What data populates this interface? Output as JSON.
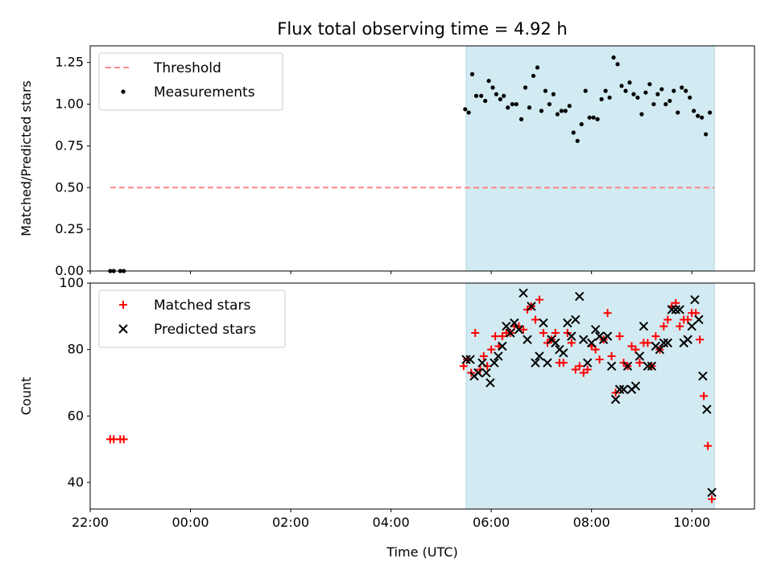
{
  "chart_data": [
    {
      "type": "scatter",
      "title": "Flux total observing time = 4.92 h",
      "xlabel": "",
      "ylabel": "Matched/Predicted stars",
      "xlim_hours": [
        -2.0,
        11.25
      ],
      "ylim": [
        0,
        1.35
      ],
      "yticks": [
        0.0,
        0.25,
        0.5,
        0.75,
        1.0,
        1.25
      ],
      "ytick_labels": [
        "0.00",
        "0.25",
        "0.50",
        "0.75",
        "1.00",
        "1.25"
      ],
      "legend_position": "upper-left",
      "shaded_interval_hours": [
        5.5,
        10.45
      ],
      "shade_color": "#add8e6",
      "series": [
        {
          "name": "Threshold",
          "kind": "dashed-line",
          "color": "#ff7f7f",
          "x": [
            -1.6,
            10.45
          ],
          "y": [
            0.5,
            0.5
          ]
        },
        {
          "name": "Measurements",
          "kind": "points",
          "color": "#000000",
          "points": [
            [
              -1.6,
              0.0
            ],
            [
              -1.53,
              0.0
            ],
            [
              -1.4,
              0.0
            ],
            [
              -1.33,
              0.0
            ],
            [
              5.48,
              0.97
            ],
            [
              5.55,
              0.95
            ],
            [
              5.62,
              1.18
            ],
            [
              5.7,
              1.05
            ],
            [
              5.8,
              1.05
            ],
            [
              5.88,
              1.02
            ],
            [
              5.95,
              1.14
            ],
            [
              6.03,
              1.1
            ],
            [
              6.1,
              1.06
            ],
            [
              6.18,
              1.03
            ],
            [
              6.25,
              1.05
            ],
            [
              6.33,
              0.98
            ],
            [
              6.42,
              1.0
            ],
            [
              6.5,
              1.0
            ],
            [
              6.6,
              0.91
            ],
            [
              6.68,
              1.1
            ],
            [
              6.76,
              0.98
            ],
            [
              6.84,
              1.17
            ],
            [
              6.92,
              1.22
            ],
            [
              7.0,
              0.96
            ],
            [
              7.08,
              1.08
            ],
            [
              7.16,
              1.0
            ],
            [
              7.24,
              1.06
            ],
            [
              7.32,
              0.94
            ],
            [
              7.4,
              0.96
            ],
            [
              7.48,
              0.96
            ],
            [
              7.56,
              0.99
            ],
            [
              7.64,
              0.83
            ],
            [
              7.72,
              0.78
            ],
            [
              7.8,
              0.88
            ],
            [
              7.88,
              1.08
            ],
            [
              7.96,
              0.92
            ],
            [
              8.04,
              0.92
            ],
            [
              8.12,
              0.91
            ],
            [
              8.2,
              1.03
            ],
            [
              8.28,
              1.08
            ],
            [
              8.36,
              1.04
            ],
            [
              8.44,
              1.28
            ],
            [
              8.52,
              1.24
            ],
            [
              8.6,
              1.11
            ],
            [
              8.68,
              1.08
            ],
            [
              8.76,
              1.13
            ],
            [
              8.84,
              1.06
            ],
            [
              8.92,
              1.04
            ],
            [
              9.0,
              0.94
            ],
            [
              9.08,
              1.07
            ],
            [
              9.16,
              1.12
            ],
            [
              9.24,
              1.0
            ],
            [
              9.32,
              1.06
            ],
            [
              9.4,
              1.09
            ],
            [
              9.48,
              1.0
            ],
            [
              9.56,
              1.02
            ],
            [
              9.64,
              1.08
            ],
            [
              9.72,
              0.95
            ],
            [
              9.8,
              1.1
            ],
            [
              9.88,
              1.08
            ],
            [
              9.96,
              1.04
            ],
            [
              10.04,
              0.96
            ],
            [
              10.12,
              0.93
            ],
            [
              10.2,
              0.92
            ],
            [
              10.28,
              0.82
            ],
            [
              10.36,
              0.95
            ]
          ]
        }
      ]
    },
    {
      "type": "scatter",
      "title": "",
      "xlabel": "Time (UTC)",
      "ylabel": "Count",
      "xlim_hours": [
        -2.0,
        11.25
      ],
      "ylim": [
        32,
        100
      ],
      "yticks": [
        40,
        60,
        80,
        100
      ],
      "ytick_labels": [
        "40",
        "60",
        "80",
        "100"
      ],
      "xticks_hours": [
        -2,
        0,
        2,
        4,
        6,
        8,
        10
      ],
      "xtick_labels": [
        "22:00",
        "00:00",
        "02:00",
        "04:00",
        "06:00",
        "08:00",
        "10:00"
      ],
      "legend_position": "upper-left",
      "shaded_interval_hours": [
        5.5,
        10.45
      ],
      "shade_color": "#add8e6",
      "series": [
        {
          "name": "Matched stars",
          "marker": "plus",
          "color": "#ff0000",
          "points": [
            [
              -1.6,
              53
            ],
            [
              -1.53,
              53
            ],
            [
              -1.4,
              53
            ],
            [
              -1.33,
              53
            ],
            [
              5.45,
              75
            ],
            [
              5.52,
              77
            ],
            [
              5.6,
              73
            ],
            [
              5.68,
              85
            ],
            [
              5.78,
              74
            ],
            [
              5.85,
              78
            ],
            [
              5.92,
              75
            ],
            [
              6.0,
              80
            ],
            [
              6.08,
              84
            ],
            [
              6.15,
              81
            ],
            [
              6.22,
              84
            ],
            [
              6.3,
              85
            ],
            [
              6.38,
              85
            ],
            [
              6.46,
              87
            ],
            [
              6.55,
              87
            ],
            [
              6.64,
              86
            ],
            [
              6.72,
              92
            ],
            [
              6.8,
              93
            ],
            [
              6.88,
              89
            ],
            [
              6.96,
              95
            ],
            [
              7.04,
              85
            ],
            [
              7.12,
              82
            ],
            [
              7.2,
              83
            ],
            [
              7.28,
              85
            ],
            [
              7.36,
              76
            ],
            [
              7.44,
              76
            ],
            [
              7.52,
              85
            ],
            [
              7.6,
              82
            ],
            [
              7.68,
              74
            ],
            [
              7.76,
              75
            ],
            [
              7.84,
              73
            ],
            [
              7.92,
              74
            ],
            [
              8.0,
              81
            ],
            [
              8.08,
              80
            ],
            [
              8.16,
              77
            ],
            [
              8.24,
              83
            ],
            [
              8.32,
              91
            ],
            [
              8.4,
              78
            ],
            [
              8.48,
              67
            ],
            [
              8.56,
              84
            ],
            [
              8.64,
              76
            ],
            [
              8.72,
              75
            ],
            [
              8.8,
              81
            ],
            [
              8.88,
              80
            ],
            [
              8.96,
              76
            ],
            [
              9.04,
              82
            ],
            [
              9.12,
              82
            ],
            [
              9.2,
              75
            ],
            [
              9.28,
              84
            ],
            [
              9.36,
              80
            ],
            [
              9.44,
              87
            ],
            [
              9.52,
              89
            ],
            [
              9.6,
              93
            ],
            [
              9.68,
              94
            ],
            [
              9.76,
              87
            ],
            [
              9.84,
              89
            ],
            [
              9.92,
              89
            ],
            [
              10.0,
              91
            ],
            [
              10.08,
              91
            ],
            [
              10.16,
              83
            ],
            [
              10.24,
              66
            ],
            [
              10.32,
              51
            ],
            [
              10.4,
              35
            ]
          ]
        },
        {
          "name": "Predicted stars",
          "marker": "x",
          "color": "#000000",
          "points": [
            [
              5.5,
              77
            ],
            [
              5.58,
              77
            ],
            [
              5.66,
              72
            ],
            [
              5.74,
              73
            ],
            [
              5.82,
              76
            ],
            [
              5.9,
              73
            ],
            [
              5.98,
              70
            ],
            [
              6.06,
              76
            ],
            [
              6.14,
              78
            ],
            [
              6.22,
              81
            ],
            [
              6.3,
              87
            ],
            [
              6.38,
              85
            ],
            [
              6.46,
              88
            ],
            [
              6.55,
              86
            ],
            [
              6.64,
              97
            ],
            [
              6.72,
              83
            ],
            [
              6.8,
              93
            ],
            [
              6.88,
              76
            ],
            [
              6.96,
              78
            ],
            [
              7.04,
              88
            ],
            [
              7.12,
              76
            ],
            [
              7.2,
              83
            ],
            [
              7.28,
              82
            ],
            [
              7.36,
              80
            ],
            [
              7.44,
              79
            ],
            [
              7.52,
              88
            ],
            [
              7.6,
              84
            ],
            [
              7.68,
              89
            ],
            [
              7.76,
              96
            ],
            [
              7.84,
              83
            ],
            [
              7.92,
              76
            ],
            [
              8.0,
              82
            ],
            [
              8.08,
              86
            ],
            [
              8.16,
              84
            ],
            [
              8.24,
              83
            ],
            [
              8.32,
              84
            ],
            [
              8.4,
              75
            ],
            [
              8.48,
              65
            ],
            [
              8.56,
              68
            ],
            [
              8.64,
              68
            ],
            [
              8.72,
              75
            ],
            [
              8.8,
              68
            ],
            [
              8.88,
              69
            ],
            [
              8.96,
              78
            ],
            [
              9.04,
              87
            ],
            [
              9.12,
              75
            ],
            [
              9.2,
              75
            ],
            [
              9.28,
              81
            ],
            [
              9.36,
              80
            ],
            [
              9.44,
              82
            ],
            [
              9.52,
              82
            ],
            [
              9.6,
              92
            ],
            [
              9.68,
              92
            ],
            [
              9.76,
              92
            ],
            [
              9.84,
              82
            ],
            [
              9.92,
              83
            ],
            [
              10.0,
              87
            ],
            [
              10.06,
              95
            ],
            [
              10.14,
              89
            ],
            [
              10.22,
              72
            ],
            [
              10.3,
              62
            ],
            [
              10.4,
              37
            ]
          ]
        }
      ]
    }
  ]
}
